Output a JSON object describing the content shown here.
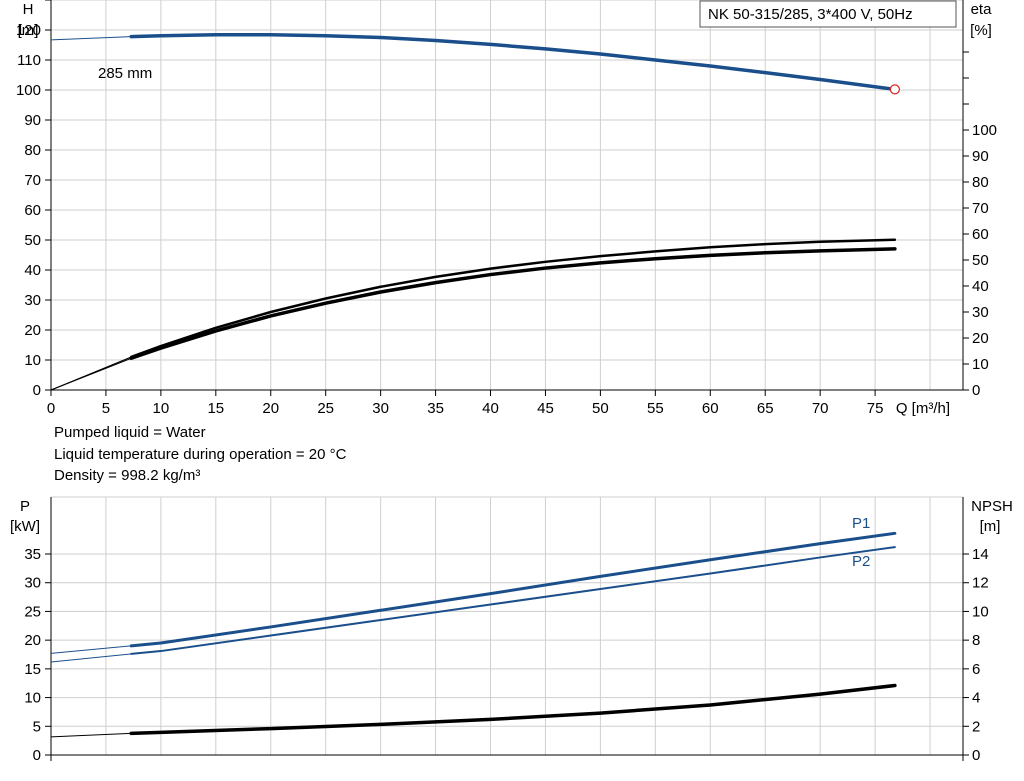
{
  "chart_data": [
    {
      "type": "line",
      "title": "NK 50-315/285, 3*400 V, 50Hz",
      "xlabel": "Q [m³/h]",
      "ylabel_left": [
        "H",
        "[m]"
      ],
      "ylabel_right": [
        "eta",
        "[%]"
      ],
      "xlim": [
        0,
        83
      ],
      "xticks": [
        0,
        5,
        10,
        15,
        20,
        25,
        30,
        35,
        40,
        45,
        50,
        55,
        60,
        65,
        70,
        75
      ],
      "ylim_left": [
        0,
        130
      ],
      "yticks_left": [
        0,
        10,
        20,
        30,
        40,
        50,
        60,
        70,
        80,
        90,
        100,
        110,
        120
      ],
      "ylim_right": [
        0,
        100
      ],
      "yticks_right": [
        0,
        10,
        20,
        30,
        40,
        50,
        60,
        70,
        80,
        90,
        100
      ],
      "grid": true,
      "annotations": [
        {
          "text": "285 mm"
        }
      ],
      "operating_point": {
        "x": 76.8,
        "y": 100.2
      },
      "series": [
        {
          "axis": "left",
          "color": "#1b4f8c",
          "x": [
            0,
            7.3,
            10,
            15,
            20,
            25,
            30,
            35,
            40,
            45,
            50,
            55,
            60,
            65,
            70,
            76.8
          ],
          "y": [
            116.7,
            117.8,
            118.1,
            118.4,
            118.4,
            118.1,
            117.5,
            116.5,
            115.2,
            113.7,
            112.0,
            110.0,
            108.0,
            105.8,
            103.5,
            100.2
          ],
          "extrapolated_to": 7.3
        },
        {
          "axis": "right",
          "color": "#000000",
          "x": [
            0,
            7.3,
            10,
            15,
            20,
            25,
            30,
            35,
            40,
            45,
            50,
            55,
            60,
            65,
            70,
            76.8
          ],
          "y": [
            0,
            12.7,
            16.9,
            23.9,
            30.0,
            35.2,
            39.7,
            43.5,
            46.7,
            49.3,
            51.5,
            53.3,
            54.9,
            56.1,
            57.0,
            57.8
          ],
          "extrapolated_to": 7.3
        },
        {
          "axis": "right",
          "color": "#000000",
          "x": [
            0,
            7.3,
            10,
            15,
            20,
            25,
            30,
            35,
            40,
            45,
            50,
            55,
            60,
            65,
            70,
            76.8
          ],
          "y": [
            0,
            12.2,
            16.1,
            22.7,
            28.5,
            33.4,
            37.7,
            41.3,
            44.4,
            46.9,
            48.9,
            50.5,
            51.8,
            52.8,
            53.5,
            54.3
          ],
          "extrapolated_to": 7.3
        }
      ]
    },
    {
      "type": "line",
      "xlim": [
        0,
        83
      ],
      "ylabel_left": [
        "P",
        "[kW]"
      ],
      "ylabel_right": [
        "NPSH",
        "[m]"
      ],
      "ylim_left": [
        0,
        40
      ],
      "yticks_left": [
        0,
        5,
        10,
        15,
        20,
        25,
        30,
        35
      ],
      "ylim_right": [
        0,
        16
      ],
      "yticks_right": [
        0,
        2,
        4,
        6,
        8,
        10,
        12,
        14
      ],
      "grid": true,
      "series": [
        {
          "name": "P1",
          "axis": "left",
          "color": "#1b4f8c",
          "x": [
            0,
            7.3,
            10,
            20,
            30,
            40,
            50,
            60,
            70,
            76.8
          ],
          "y": [
            17.7,
            19.0,
            19.5,
            22.3,
            25.2,
            28.1,
            31.1,
            34.0,
            36.8,
            38.6
          ],
          "extrapolated_to": 7.3
        },
        {
          "name": "P2",
          "axis": "left",
          "color": "#1b4f8c",
          "x": [
            0,
            7.3,
            10,
            20,
            30,
            40,
            50,
            60,
            70,
            76.8
          ],
          "y": [
            16.2,
            17.6,
            18.1,
            20.8,
            23.5,
            26.2,
            28.9,
            31.6,
            34.4,
            36.2
          ],
          "extrapolated_to": 7.3
        },
        {
          "axis": "right",
          "color": "#000000",
          "x": [
            0,
            7.3,
            10,
            20,
            30,
            40,
            50,
            60,
            70,
            76.8
          ],
          "y": [
            1.26,
            1.51,
            1.58,
            1.84,
            2.13,
            2.48,
            2.92,
            3.48,
            4.24,
            4.84
          ],
          "extrapolated_to": 7.3
        }
      ]
    }
  ],
  "info": {
    "line1": "Pumped liquid = Water",
    "line2": "Liquid temperature during operation = 20 °C",
    "line3": "Density = 998.2 kg/m³"
  }
}
